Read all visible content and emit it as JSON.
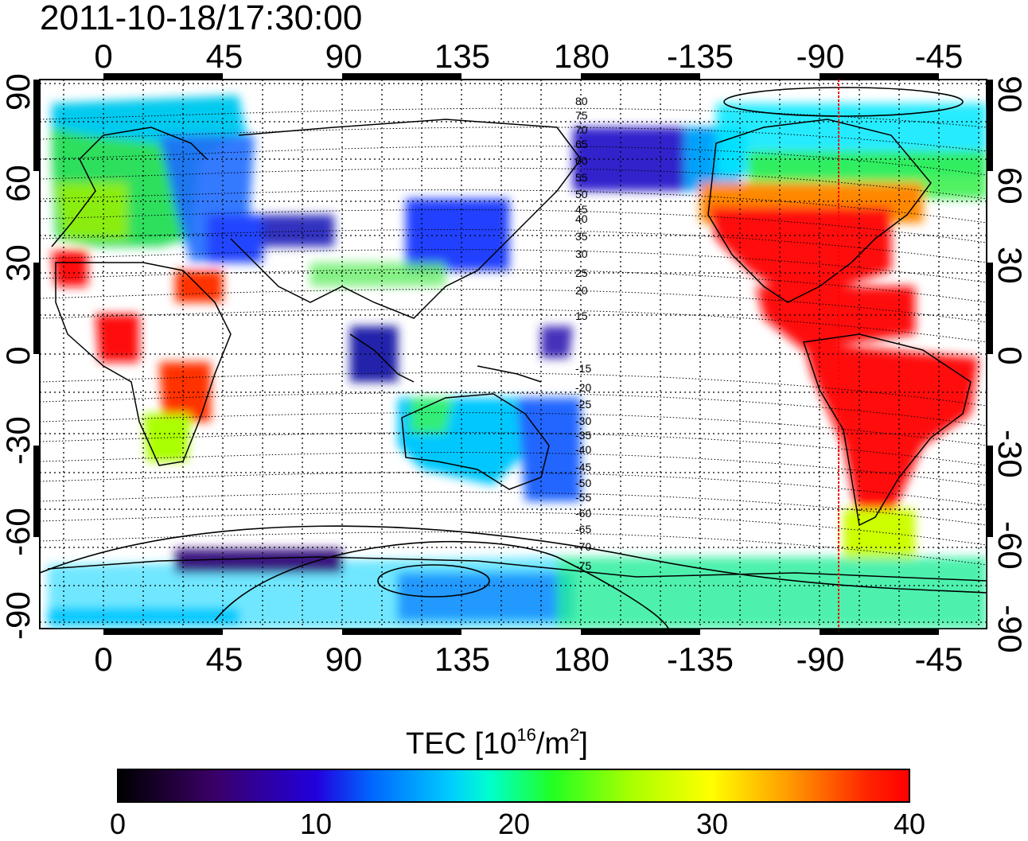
{
  "title": "2011-10-18/17:30:00",
  "map": {
    "lon_ticks": [
      "0",
      "45",
      "90",
      "135",
      "180",
      "-135",
      "-90",
      "-45"
    ],
    "lat_ticks": [
      "90",
      "60",
      "30",
      "0",
      "-30",
      "-60",
      "-90"
    ],
    "magnetic_latitude_labels": [
      "80",
      "75",
      "70",
      "65",
      "60",
      "55",
      "50",
      "45",
      "40",
      "35",
      "30",
      "25",
      "20",
      "15",
      "-15",
      "-20",
      "-25",
      "-30",
      "-35",
      "-40",
      "-45",
      "-50",
      "-55",
      "-60",
      "-65",
      "-70",
      "-75"
    ],
    "marker_color": "#ff0000",
    "marker_longitude": -83,
    "grid": true
  },
  "colorbar": {
    "label": "TEC  [10",
    "label_exp": "16",
    "label_unit": "/m",
    "label_unit_exp": "2",
    "label_close": "]",
    "ticks": [
      "0",
      "10",
      "20",
      "30",
      "40"
    ],
    "min": 0,
    "max": 40
  }
}
